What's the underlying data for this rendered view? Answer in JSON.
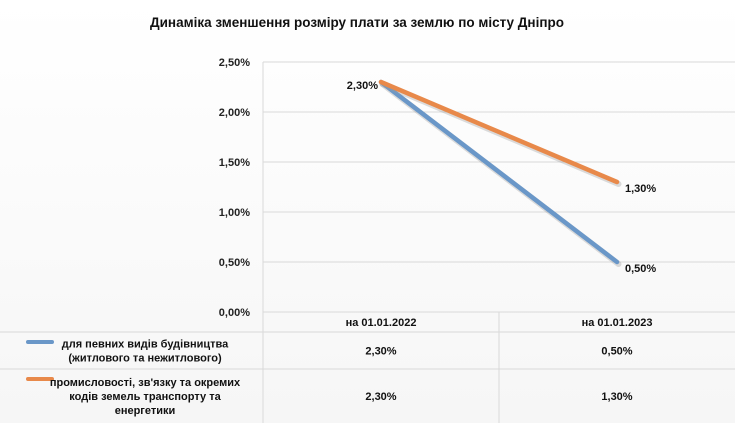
{
  "chart_data": {
    "type": "line",
    "title": "Динаміка зменшення розміру плати за землю по місту Дніпро",
    "categories": [
      "на 01.01.2022",
      "на 01.01.2023"
    ],
    "y_ticks": [
      "0,00%",
      "0,50%",
      "1,00%",
      "1,50%",
      "2,00%",
      "2,50%"
    ],
    "ylim": [
      0,
      2.5
    ],
    "grid": true,
    "legend_placement": "data-table-bottom",
    "series": [
      {
        "name_lines": [
          "для певних видів будівництва",
          "(житлового та нежитлового)"
        ],
        "values": [
          2.3,
          0.5
        ],
        "value_labels": [
          "2,30%",
          "0,50%"
        ],
        "color": "#6a97c8"
      },
      {
        "name_lines": [
          "промисловості,  зв'язку та окремих",
          "кодів земель транспорту та",
          "енергетики"
        ],
        "values": [
          2.3,
          1.3
        ],
        "value_labels": [
          "2,30%",
          "1,30%"
        ],
        "color": "#e8894a"
      }
    ]
  }
}
